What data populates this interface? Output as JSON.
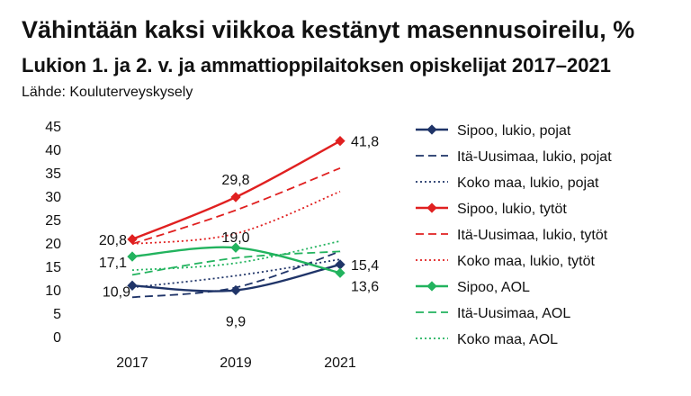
{
  "chart_data": {
    "type": "line",
    "title": "Vähintään kaksi viikkoa kestänyt masennusoireilu, %",
    "subtitle": "Lukion 1. ja 2. v. ja ammattioppilaitoksen opiskelijat 2017–2021",
    "source": "Lähde: Kouluterveyskysely",
    "x": [
      "2017",
      "2019",
      "2021"
    ],
    "ylim": [
      0,
      45
    ],
    "yticks": [
      0,
      5,
      10,
      15,
      20,
      25,
      30,
      35,
      40,
      45
    ],
    "series": [
      {
        "name": "Sipoo, lukio, pojat",
        "values": [
          10.9,
          9.9,
          15.4
        ],
        "color": "#1f3468",
        "style": "solid",
        "marker": true,
        "labels": [
          "10,9",
          "9,9",
          "15,4"
        ]
      },
      {
        "name": "Itä-Uusimaa, lukio, pojat",
        "values": [
          8.4,
          10.5,
          18.2
        ],
        "color": "#1f3468",
        "style": "dashed",
        "marker": false
      },
      {
        "name": "Koko maa, lukio, pojat",
        "values": [
          10.5,
          13.0,
          16.5
        ],
        "color": "#1f3468",
        "style": "dotted",
        "marker": false
      },
      {
        "name": "Sipoo, lukio, tytöt",
        "values": [
          20.8,
          29.8,
          41.8
        ],
        "color": "#e02020",
        "style": "solid",
        "marker": true,
        "labels": [
          "20,8",
          "29,8",
          "41,8"
        ]
      },
      {
        "name": "Itä-Uusimaa, lukio, tytöt",
        "values": [
          19.8,
          27.0,
          36.0
        ],
        "color": "#e02020",
        "style": "dashed",
        "marker": false
      },
      {
        "name": "Koko maa, lukio, tytöt",
        "values": [
          19.8,
          22.0,
          31.0
        ],
        "color": "#e02020",
        "style": "dotted",
        "marker": false
      },
      {
        "name": "Sipoo, AOL",
        "values": [
          17.1,
          19.0,
          13.6
        ],
        "color": "#22b35e",
        "style": "solid",
        "marker": true,
        "labels": [
          "17,1",
          "19,0",
          "13,6"
        ]
      },
      {
        "name": "Itä-Uusimaa, AOL",
        "values": [
          13.2,
          16.8,
          18.2
        ],
        "color": "#22b35e",
        "style": "dashed",
        "marker": false
      },
      {
        "name": "Koko maa, AOL",
        "values": [
          14.2,
          15.7,
          20.4
        ],
        "color": "#22b35e",
        "style": "dotted",
        "marker": false
      }
    ]
  }
}
